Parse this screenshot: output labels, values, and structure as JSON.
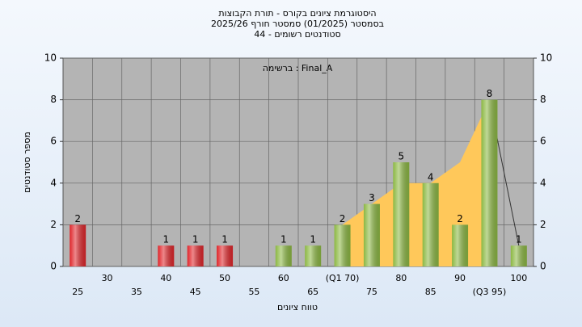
{
  "chart_data": {
    "type": "bar",
    "title": [
      "היסטוגרמת ציונים בקורס - תורת הקבוצות",
      "בסמסטר  (01/2025)  סמסטר חורף 2025/26",
      "סטודנטים רשומים - 44"
    ],
    "annotation": "ברשימה : Final_A",
    "y_label": "מספר סטודנטים",
    "x_label": "טווח ציונים",
    "categories": [
      "25",
      "30",
      "35",
      "40",
      "45",
      "50",
      "55",
      "60",
      "65",
      "(Q1 70)",
      "75",
      "80",
      "85",
      "90",
      "(Q3 95)",
      "100"
    ],
    "values": [
      2,
      0,
      0,
      1,
      1,
      1,
      0,
      1,
      1,
      2,
      3,
      5,
      4,
      2,
      8,
      1
    ],
    "colors": [
      "#e0262b",
      "#e0262b",
      "#e0262b",
      "#e0262b",
      "#e0262b",
      "#e0262b",
      "#e0262b",
      "#8cb843",
      "#8cb843",
      "#8cb843",
      "#8cb843",
      "#8cb843",
      "#8cb843",
      "#8cb843",
      "#8cb843",
      "#8cb843"
    ],
    "trend": {
      "color": "#ffc85a",
      "values": [
        null,
        null,
        null,
        null,
        null,
        null,
        null,
        null,
        null,
        2,
        3,
        4,
        4,
        5,
        8,
        1
      ]
    },
    "ylim": [
      0,
      10
    ],
    "yticks": [
      0,
      2,
      4,
      6,
      8,
      10
    ],
    "grid": true
  }
}
